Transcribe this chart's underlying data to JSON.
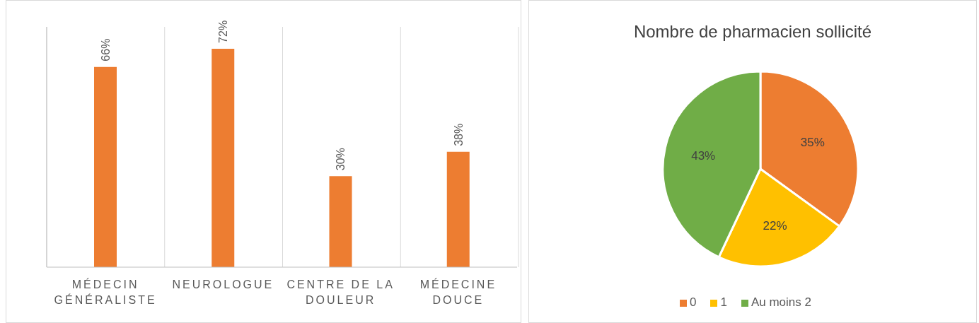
{
  "chart_data": [
    {
      "type": "bar",
      "categories": [
        "MÉDECIN GÉNÉRALISTE",
        "NEUROLOGUE",
        "CENTRE DE LA DOULEUR",
        "MÉDECINE DOUCE"
      ],
      "values": [
        66,
        72,
        30,
        38
      ],
      "color": "#ed7d31",
      "value_labels": [
        "66%",
        "72%",
        "30%",
        "38%"
      ],
      "grid": "x"
    },
    {
      "type": "pie",
      "title": "Nombre de pharmacien sollicité",
      "categories": [
        "0",
        "1",
        "Au moins 2"
      ],
      "values": [
        35,
        22,
        43
      ],
      "colors": [
        "#ed7d31",
        "#ffc000",
        "#70ad47"
      ],
      "value_labels": [
        "35%",
        "22%",
        "43%"
      ],
      "legend": "bottom"
    }
  ]
}
